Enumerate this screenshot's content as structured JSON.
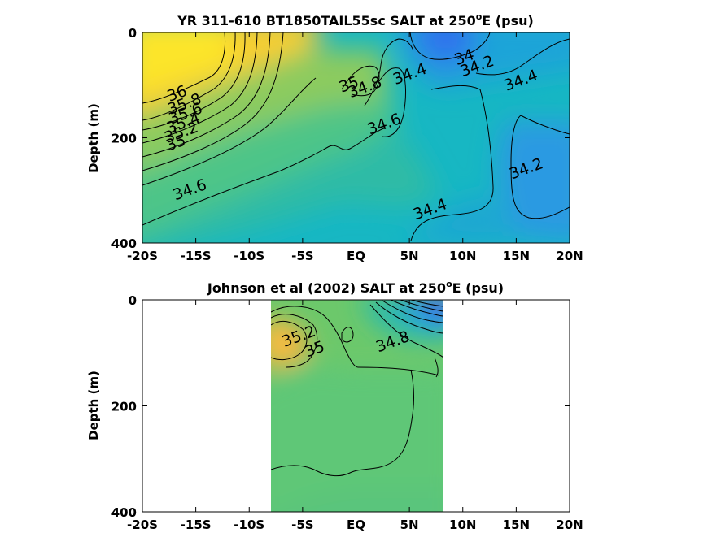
{
  "chart_data": [
    {
      "type": "heatmap",
      "subtype": "filled-contour",
      "title_main": "YR 311-610 BT1850TAIL55sc SALT at 250",
      "title_sup": "o",
      "title_end": "E (psu)",
      "ylabel": "Depth (m)",
      "xlim": [
        -20,
        20
      ],
      "ylim": [
        0,
        400
      ],
      "y_reversed": true,
      "xticks": [
        -20,
        -15,
        -10,
        -5,
        0,
        5,
        10,
        15,
        20
      ],
      "xtick_labels": [
        "-20S",
        "-15S",
        "-10S",
        "-5S",
        "EQ",
        "5N",
        "10N",
        "15N",
        "20N"
      ],
      "yticks": [
        0,
        200,
        400
      ],
      "ytick_labels": [
        "0",
        "200",
        "400"
      ],
      "data_extent": [
        -20,
        20
      ],
      "colormap": "parula",
      "contour_levels": [
        34,
        34.2,
        34.4,
        34.6,
        34.8,
        35,
        35.2,
        35.4,
        35.6,
        35.8,
        36
      ],
      "contour_labels": [
        {
          "text": "36",
          "x": -16.6,
          "y": 125
        },
        {
          "text": "35.8",
          "x": -15.9,
          "y": 145
        },
        {
          "text": "35.6",
          "x": -15.8,
          "y": 163
        },
        {
          "text": "35.4",
          "x": -16.0,
          "y": 181
        },
        {
          "text": "35.2",
          "x": -16.2,
          "y": 199
        },
        {
          "text": "35",
          "x": -16.7,
          "y": 219
        },
        {
          "text": "34.6",
          "x": -15.4,
          "y": 308
        },
        {
          "text": "35",
          "x": -0.5,
          "y": 108
        },
        {
          "text": "34.8",
          "x": 1.0,
          "y": 113
        },
        {
          "text": "34.4",
          "x": 5.2,
          "y": 88
        },
        {
          "text": "34",
          "x": 10.3,
          "y": 56
        },
        {
          "text": "34.2",
          "x": 11.5,
          "y": 73
        },
        {
          "text": "34.4",
          "x": 15.6,
          "y": 100
        },
        {
          "text": "34.6",
          "x": 2.8,
          "y": 183
        },
        {
          "text": "34.2",
          "x": 16.1,
          "y": 268
        },
        {
          "text": "34.4",
          "x": 7.1,
          "y": 345
        }
      ]
    },
    {
      "type": "heatmap",
      "subtype": "filled-contour",
      "title_main": "Johnson et al (2002) SALT at 250",
      "title_sup": "o",
      "title_end": "E (psu)",
      "ylabel": "Depth (m)",
      "xlim": [
        -20,
        20
      ],
      "ylim": [
        0,
        400
      ],
      "y_reversed": true,
      "xticks": [
        -20,
        -15,
        -10,
        -5,
        0,
        5,
        10,
        15,
        20
      ],
      "xtick_labels": [
        "-20S",
        "-15S",
        "-10S",
        "-5S",
        "EQ",
        "5N",
        "10N",
        "15N",
        "20N"
      ],
      "yticks": [
        0,
        200,
        400
      ],
      "ytick_labels": [
        "0",
        "200",
        "400"
      ],
      "data_extent": [
        -8,
        8.2
      ],
      "colormap": "parula",
      "contour_levels": [
        34,
        34.2,
        34.4,
        34.6,
        34.8,
        35,
        35.2,
        35.4
      ],
      "contour_labels": [
        {
          "text": "35.2",
          "x": -5.2,
          "y": 78
        },
        {
          "text": "35",
          "x": -3.7,
          "y": 102
        },
        {
          "text": "34.8",
          "x": 3.6,
          "y": 88
        }
      ]
    }
  ]
}
